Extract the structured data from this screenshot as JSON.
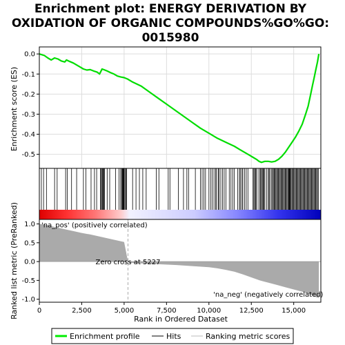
{
  "chart_data": {
    "type": "line",
    "title_lines": [
      "Enrichment plot: ENERGY DERIVATION BY",
      "OXIDATION OF ORGANIC COMPOUNDS%GO%GO:",
      "0015980"
    ],
    "xlabel": "Rank in Ordered Dataset",
    "ylabel_top": "Enrichment score (ES)",
    "ylabel_bottom": "Ranked list metric (PreRanked)",
    "xlim": [
      0,
      16600
    ],
    "x_ticks": [
      0,
      2500,
      5000,
      7500,
      10000,
      12500,
      15000
    ],
    "x_tick_labels": [
      "0",
      "2,500",
      "5,000",
      "7,500",
      "10,000",
      "12,500",
      "15,000"
    ],
    "es_ylim": [
      -0.57,
      0.035
    ],
    "es_ticks": [
      0.0,
      -0.1,
      -0.2,
      -0.3,
      -0.4,
      -0.5
    ],
    "es_tick_labels": [
      "0.0",
      "-0.1",
      "-0.2",
      "-0.3",
      "-0.4",
      "-0.5"
    ],
    "metric_ylim": [
      -1.08,
      1.12
    ],
    "metric_ticks": [
      1.0,
      0.5,
      0.0,
      -0.5,
      -1.0
    ],
    "metric_tick_labels": [
      "1.0",
      "0.5",
      "0.0",
      "-0.5",
      "-1.0"
    ],
    "enrichment_profile": {
      "x": [
        0,
        300,
        500,
        700,
        900,
        1100,
        1300,
        1500,
        1600,
        1800,
        2000,
        2200,
        2400,
        2600,
        2800,
        3000,
        3200,
        3400,
        3550,
        3700,
        3800,
        4000,
        4200,
        4400,
        4600,
        4800,
        5000,
        5200,
        5500,
        6000,
        6500,
        7000,
        7500,
        8000,
        8500,
        9000,
        9500,
        10000,
        10500,
        11000,
        11500,
        11800,
        12000,
        12200,
        12400,
        12600,
        12800,
        12950,
        13100,
        13300,
        13500,
        13700,
        13900,
        14100,
        14300,
        14500,
        14700,
        14900,
        15100,
        15300,
        15500,
        15700,
        15850,
        16000,
        16100,
        16200,
        16300,
        16400,
        16480
      ],
      "y": [
        0.0,
        -0.008,
        -0.02,
        -0.03,
        -0.02,
        -0.025,
        -0.035,
        -0.04,
        -0.03,
        -0.038,
        -0.045,
        -0.055,
        -0.065,
        -0.075,
        -0.08,
        -0.078,
        -0.085,
        -0.09,
        -0.1,
        -0.075,
        -0.078,
        -0.085,
        -0.093,
        -0.1,
        -0.11,
        -0.115,
        -0.118,
        -0.125,
        -0.14,
        -0.16,
        -0.19,
        -0.22,
        -0.25,
        -0.28,
        -0.31,
        -0.34,
        -0.37,
        -0.395,
        -0.42,
        -0.44,
        -0.46,
        -0.475,
        -0.485,
        -0.495,
        -0.505,
        -0.515,
        -0.525,
        -0.535,
        -0.54,
        -0.535,
        -0.535,
        -0.538,
        -0.535,
        -0.525,
        -0.51,
        -0.49,
        -0.465,
        -0.44,
        -0.415,
        -0.385,
        -0.35,
        -0.3,
        -0.26,
        -0.2,
        -0.16,
        -0.12,
        -0.08,
        -0.04,
        0.0
      ]
    },
    "hits": [
      120,
      250,
      420,
      900,
      1050,
      1550,
      1650,
      1900,
      2200,
      2600,
      2750,
      3050,
      3250,
      3380,
      3600,
      3650,
      3700,
      3720,
      3760,
      3800,
      3850,
      4000,
      4150,
      4500,
      4700,
      4800,
      4850,
      4900,
      4920,
      4950,
      4980,
      5000,
      5050,
      5100,
      5150,
      5500,
      5700,
      5900,
      6100,
      6300,
      6900,
      7050,
      7600,
      7700,
      8200,
      8500,
      8700,
      8800,
      9200,
      9500,
      9600,
      9700,
      9800,
      10000,
      10100,
      10200,
      10300,
      10400,
      10450,
      10550,
      10600,
      10700,
      10800,
      10900,
      11000,
      11200,
      11300,
      11400,
      11500,
      11700,
      11800,
      11850,
      11950,
      12000,
      12100,
      12200,
      12300,
      12600,
      12650,
      12700,
      12750,
      12800,
      12900,
      13000,
      13050,
      13100,
      13150,
      13200,
      13250,
      13300,
      13400,
      13500,
      13550,
      13600,
      13700,
      13750,
      13800,
      13850,
      13900,
      13950,
      14000,
      14050,
      14100,
      14150,
      14200,
      14250,
      14300,
      14350,
      14400,
      14450,
      14500,
      14550,
      14600,
      14650,
      14700,
      14720,
      14750,
      14780,
      14800,
      14850,
      14900,
      14950,
      15000,
      15050,
      15100,
      15150,
      15200,
      15250,
      15300,
      15350,
      15400,
      15450,
      15500,
      15550,
      15600,
      15650,
      15700,
      15750,
      15800,
      15850,
      15900,
      15950,
      16000,
      16050,
      16100,
      16150,
      16200,
      16250,
      16300,
      16350,
      16400,
      16450
    ],
    "ranking_metric": {
      "x": [
        0,
        300,
        800,
        1500,
        2000,
        2500,
        3000,
        3500,
        4000,
        4500,
        5000,
        5227,
        5300,
        6000,
        7000,
        8000,
        9000,
        10000,
        10500,
        11000,
        11500,
        12000,
        12500,
        13000,
        13500,
        14000,
        14500,
        15000,
        15500,
        16000,
        16300,
        16480
      ],
      "y": [
        1.0,
        0.98,
        0.93,
        0.86,
        0.81,
        0.76,
        0.72,
        0.67,
        0.62,
        0.57,
        0.52,
        0.0,
        -0.03,
        -0.05,
        -0.07,
        -0.09,
        -0.12,
        -0.15,
        -0.18,
        -0.22,
        -0.27,
        -0.34,
        -0.42,
        -0.5,
        -0.56,
        -0.62,
        -0.68,
        -0.74,
        -0.8,
        -0.88,
        -0.94,
        -0.97
      ]
    },
    "zero_cross_rank": 5227,
    "annotations": {
      "pos_label": "'na_pos' (positively correlated)",
      "neg_label": "'na_neg' (negatively correlated)",
      "zero_cross_label": "Zero cross at 5227"
    },
    "legend": {
      "placement": "bottom",
      "items": [
        {
          "label": "Enrichment profile",
          "color": "#00ee00",
          "style": "thick-line"
        },
        {
          "label": "Hits",
          "color": "#000000",
          "style": "line"
        },
        {
          "label": "Ranking metric scores",
          "color": "#bbbbbb",
          "style": "line"
        }
      ]
    },
    "colors": {
      "profile": "#00dd00",
      "pos_text": "#cc0000",
      "neg_text": "#0000cc",
      "metric_fill": "#aaaaaa",
      "grid": "#dddddd"
    }
  }
}
